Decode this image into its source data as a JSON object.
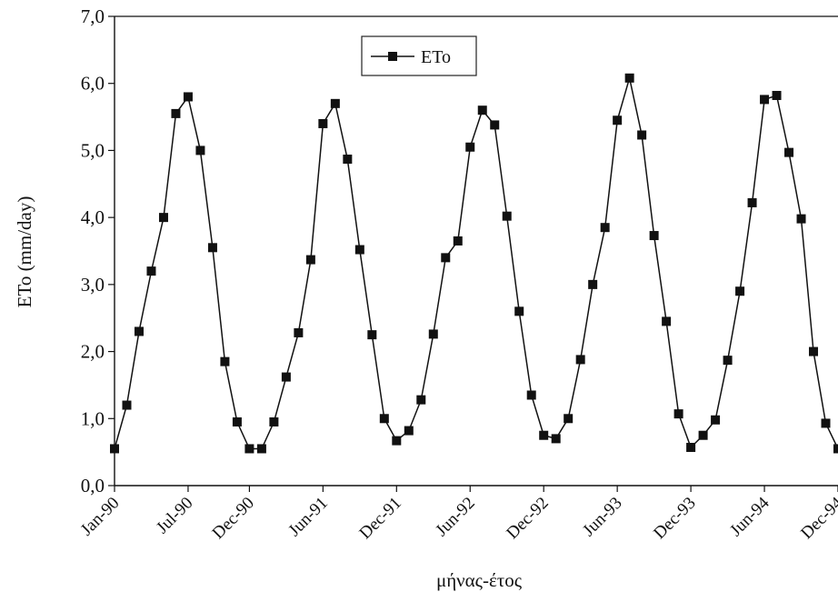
{
  "chart_data": {
    "type": "line",
    "ylabel": "ETo (mm/day)",
    "xlabel": "μήνας-έτος",
    "ylim": [
      0,
      7
    ],
    "y_ticks": [
      "0,0",
      "1,0",
      "2,0",
      "3,0",
      "4,0",
      "5,0",
      "6,0",
      "7,0"
    ],
    "x_tick_labels": [
      "Jan-90",
      "Jul-90",
      "Dec-90",
      "Jun-91",
      "Dec-91",
      "Jun-92",
      "Dec-92",
      "Jun-93",
      "Dec-93",
      "Jun-94",
      "Dec-94"
    ],
    "legend": {
      "label": "ETo",
      "position": "top-center"
    },
    "grid": false,
    "series": [
      {
        "name": "ETo",
        "color": "#111111",
        "marker": "square",
        "values": [
          0.55,
          1.2,
          2.3,
          3.2,
          4.0,
          5.55,
          5.8,
          5.0,
          3.55,
          1.85,
          0.95,
          0.55,
          0.55,
          0.95,
          1.62,
          2.28,
          3.37,
          5.4,
          5.7,
          4.87,
          3.52,
          2.25,
          1.0,
          0.67,
          0.82,
          1.28,
          2.26,
          3.4,
          3.65,
          5.05,
          5.6,
          5.38,
          4.02,
          2.6,
          1.35,
          0.75,
          0.7,
          1.0,
          1.88,
          3.0,
          3.85,
          5.45,
          6.08,
          5.23,
          3.73,
          2.45,
          1.07,
          0.57,
          0.75,
          0.98,
          1.87,
          2.9,
          4.22,
          5.76,
          5.82,
          4.97,
          3.98,
          2.0,
          0.93,
          0.55
        ]
      }
    ]
  }
}
